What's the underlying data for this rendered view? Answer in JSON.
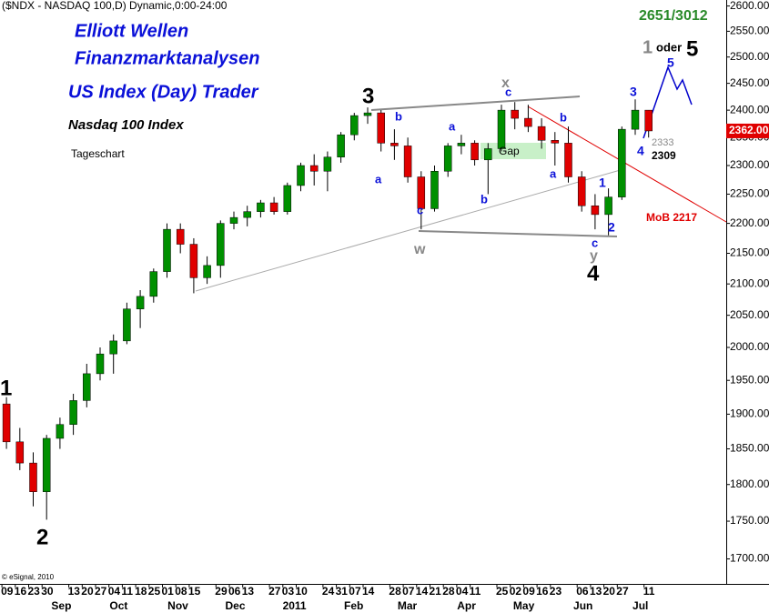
{
  "chart_data": {
    "type": "candlestick",
    "title": "($NDX - NASDAQ 100,D) Dynamic,0:00-24:00",
    "log_scale": true,
    "up_color": "#009000",
    "down_color": "#e00000",
    "x": [
      "2010-08-09",
      "2010-08-16",
      "2010-08-23",
      "2010-08-30",
      "2010-09-06",
      "2010-09-13",
      "2010-09-20",
      "2010-09-27",
      "2010-10-04",
      "2010-10-11",
      "2010-10-18",
      "2010-10-25",
      "2010-11-01",
      "2010-11-08",
      "2010-11-15",
      "2010-11-22",
      "2010-11-29",
      "2010-12-06",
      "2010-12-13",
      "2010-12-20",
      "2010-12-27",
      "2011-01-03",
      "2011-01-10",
      "2011-01-17",
      "2011-01-24",
      "2011-01-31",
      "2011-02-07",
      "2011-02-14",
      "2011-02-21",
      "2011-02-28",
      "2011-03-07",
      "2011-03-14",
      "2011-03-21",
      "2011-03-28",
      "2011-04-04",
      "2011-04-11",
      "2011-04-18",
      "2011-04-25",
      "2011-05-02",
      "2011-05-09",
      "2011-05-16",
      "2011-05-23",
      "2011-05-30",
      "2011-06-06",
      "2011-06-13",
      "2011-06-20",
      "2011-06-27",
      "2011-07-04",
      "2011-07-11"
    ],
    "open": [
      1915,
      1860,
      1830,
      1790,
      1865,
      1885,
      1920,
      1960,
      1990,
      2010,
      2060,
      2080,
      2120,
      2190,
      2165,
      2110,
      2130,
      2200,
      2210,
      2220,
      2235,
      2220,
      2265,
      2300,
      2290,
      2315,
      2355,
      2390,
      2395,
      2340,
      2335,
      2280,
      2225,
      2290,
      2335,
      2340,
      2310,
      2330,
      2400,
      2385,
      2370,
      2345,
      2340,
      2280,
      2230,
      2215,
      2245,
      2365,
      2400
    ],
    "high": [
      1925,
      1880,
      1845,
      1870,
      1895,
      1930,
      1975,
      2000,
      2020,
      2070,
      2090,
      2125,
      2200,
      2200,
      2175,
      2145,
      2205,
      2220,
      2230,
      2240,
      2245,
      2270,
      2305,
      2320,
      2325,
      2360,
      2395,
      2405,
      2400,
      2365,
      2350,
      2290,
      2300,
      2340,
      2355,
      2345,
      2340,
      2410,
      2415,
      2410,
      2385,
      2360,
      2370,
      2290,
      2250,
      2260,
      2370,
      2420,
      2400
    ],
    "low": [
      1850,
      1820,
      1770,
      1752,
      1850,
      1870,
      1910,
      1950,
      1960,
      2005,
      2030,
      2070,
      2110,
      2150,
      2085,
      2100,
      2110,
      2190,
      2195,
      2210,
      2215,
      2215,
      2255,
      2265,
      2255,
      2305,
      2345,
      2375,
      2325,
      2310,
      2270,
      2190,
      2220,
      2280,
      2320,
      2300,
      2250,
      2325,
      2365,
      2360,
      2330,
      2300,
      2270,
      2220,
      2190,
      2180,
      2240,
      2355,
      2350
    ],
    "close": [
      1860,
      1830,
      1790,
      1865,
      1885,
      1920,
      1960,
      1990,
      2010,
      2060,
      2080,
      2120,
      2190,
      2165,
      2110,
      2130,
      2200,
      2210,
      2220,
      2235,
      2220,
      2265,
      2300,
      2290,
      2315,
      2355,
      2390,
      2395,
      2340,
      2335,
      2280,
      2225,
      2290,
      2335,
      2340,
      2310,
      2330,
      2400,
      2385,
      2370,
      2345,
      2340,
      2280,
      2230,
      2215,
      2245,
      2365,
      2400,
      2362
    ],
    "last_price_label": "2362.00",
    "xlim": [
      "2010-08-08",
      "2011-08-23"
    ],
    "ylim": [
      1670,
      2612
    ],
    "yticks": [
      {
        "value": 1700,
        "label": "1700.00"
      },
      {
        "value": 1750,
        "label": "1750.00"
      },
      {
        "value": 1800,
        "label": "1800.00"
      },
      {
        "value": 1850,
        "label": "1850.00"
      },
      {
        "value": 1900,
        "label": "1900.00"
      },
      {
        "value": 1950,
        "label": "1950.00"
      },
      {
        "value": 2000,
        "label": "2000.00"
      },
      {
        "value": 2050,
        "label": "2050.00"
      },
      {
        "value": 2100,
        "label": "2100.00"
      },
      {
        "value": 2150,
        "label": "2150.00"
      },
      {
        "value": 2200,
        "label": "2200.00"
      },
      {
        "value": 2250,
        "label": "2250.00"
      },
      {
        "value": 2300,
        "label": "2300.00"
      },
      {
        "value": 2350,
        "label": "2350.00"
      },
      {
        "value": 2400,
        "label": "2400.00"
      },
      {
        "value": 2450,
        "label": "2450.00"
      },
      {
        "value": 2500,
        "label": "2500.00"
      },
      {
        "value": 2550,
        "label": "2550.00"
      },
      {
        "value": 2600,
        "label": "2600.00"
      }
    ],
    "xticks": [
      {
        "value": "2010-08-09",
        "label": "09"
      },
      {
        "value": "2010-08-16",
        "label": "16"
      },
      {
        "value": "2010-08-23",
        "label": "23"
      },
      {
        "value": "2010-08-30",
        "label": "30"
      },
      {
        "value": "2010-09-13",
        "label": "13"
      },
      {
        "value": "2010-09-20",
        "label": "20"
      },
      {
        "value": "2010-09-27",
        "label": "27"
      },
      {
        "value": "2010-10-04",
        "label": "04"
      },
      {
        "value": "2010-10-11",
        "label": "11"
      },
      {
        "value": "2010-10-18",
        "label": "18"
      },
      {
        "value": "2010-10-25",
        "label": "25"
      },
      {
        "value": "2010-11-01",
        "label": "01"
      },
      {
        "value": "2010-11-08",
        "label": "08"
      },
      {
        "value": "2010-11-15",
        "label": "15"
      },
      {
        "value": "2010-11-29",
        "label": "29"
      },
      {
        "value": "2010-12-06",
        "label": "06"
      },
      {
        "value": "2010-12-13",
        "label": "13"
      },
      {
        "value": "2010-12-27",
        "label": "27"
      },
      {
        "value": "2011-01-03",
        "label": "03"
      },
      {
        "value": "2011-01-10",
        "label": "10"
      },
      {
        "value": "2011-01-24",
        "label": "24"
      },
      {
        "value": "2011-01-31",
        "label": "31"
      },
      {
        "value": "2011-02-07",
        "label": "07"
      },
      {
        "value": "2011-02-14",
        "label": "14"
      },
      {
        "value": "2011-02-28",
        "label": "28"
      },
      {
        "value": "2011-03-07",
        "label": "07"
      },
      {
        "value": "2011-03-14",
        "label": "14"
      },
      {
        "value": "2011-03-21",
        "label": "21"
      },
      {
        "value": "2011-03-28",
        "label": "28"
      },
      {
        "value": "2011-04-04",
        "label": "04"
      },
      {
        "value": "2011-04-11",
        "label": "11"
      },
      {
        "value": "2011-04-25",
        "label": "25"
      },
      {
        "value": "2011-05-02",
        "label": "02"
      },
      {
        "value": "2011-05-09",
        "label": "09"
      },
      {
        "value": "2011-05-16",
        "label": "16"
      },
      {
        "value": "2011-05-23",
        "label": "23"
      },
      {
        "value": "2011-06-06",
        "label": "06"
      },
      {
        "value": "2011-06-13",
        "label": "13"
      },
      {
        "value": "2011-06-20",
        "label": "20"
      },
      {
        "value": "2011-06-27",
        "label": "27"
      },
      {
        "value": "2011-07-11",
        "label": "11"
      }
    ],
    "month_ticks": [
      {
        "value": "2010-09-01",
        "label": "Sep"
      },
      {
        "value": "2010-10-01",
        "label": "Oct"
      },
      {
        "value": "2010-11-01",
        "label": "Nov"
      },
      {
        "value": "2010-12-01",
        "label": "Dec"
      },
      {
        "value": "2011-01-01",
        "label": "2011"
      },
      {
        "value": "2011-02-01",
        "label": "Feb"
      },
      {
        "value": "2011-03-01",
        "label": "Mar"
      },
      {
        "value": "2011-04-01",
        "label": "Apr"
      },
      {
        "value": "2011-05-01",
        "label": "May"
      },
      {
        "value": "2011-06-01",
        "label": "Jun"
      },
      {
        "value": "2011-07-01",
        "label": "Jul"
      }
    ],
    "annotations": [
      "Elliott Wellen",
      "Finanzmarktanalysen",
      "US Index (Day) Trader",
      "Nasdaq 100 Index",
      "Tageschart",
      "2651/3012",
      "1",
      "2",
      "3",
      "4",
      "5",
      "1",
      "oder",
      "5",
      "3",
      "4",
      "1",
      "2",
      "a",
      "b",
      "c",
      "w",
      "a",
      "b",
      "x",
      "c",
      "b",
      "a",
      "c",
      "y",
      "Gap",
      "2333",
      "2309",
      "MoB 2217",
      "© eSignal, 2010"
    ]
  }
}
